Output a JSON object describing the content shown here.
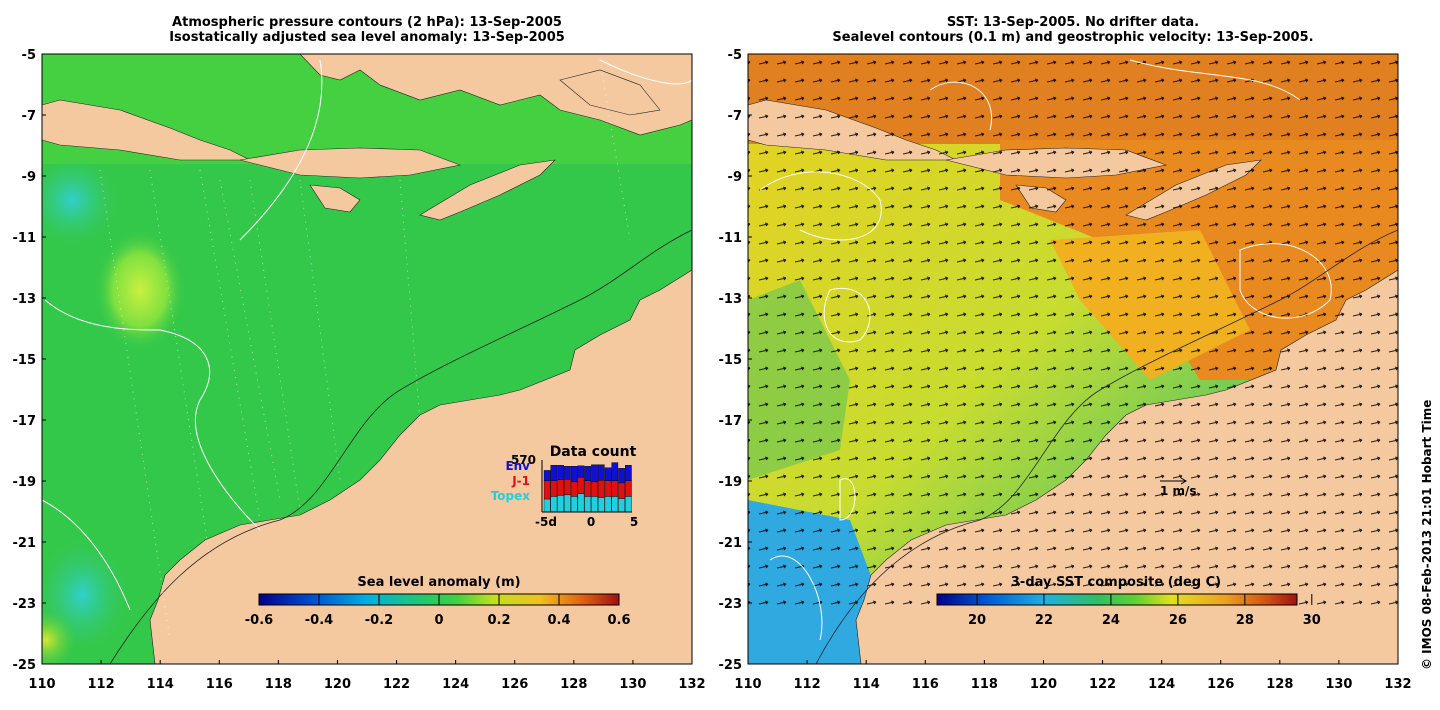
{
  "left_panel": {
    "title_line1": "Atmospheric pressure contours (2 hPa): 13-Sep-2005",
    "title_line2": "Isostatically adjusted sea level anomaly: 13-Sep-2005",
    "colorbar_label": "Sea level anomaly (m)",
    "colorbar_ticks": [
      "-0.6",
      "-0.4",
      "-0.2",
      "0",
      "0.2",
      "0.4",
      "0.6"
    ],
    "data_count": {
      "title": "Data count",
      "max_label": "570",
      "legend": [
        {
          "name": "Env",
          "color": "#1010d0"
        },
        {
          "name": "J-1",
          "color": "#e01010"
        },
        {
          "name": "Topex",
          "color": "#20d0e0"
        }
      ],
      "x_ticks": [
        "-5d",
        "0",
        "5"
      ],
      "bars": [
        {
          "env": 0.2,
          "j1": 0.35,
          "topex": 0.25
        },
        {
          "env": 0.3,
          "j1": 0.3,
          "topex": 0.3
        },
        {
          "env": 0.28,
          "j1": 0.3,
          "topex": 0.32
        },
        {
          "env": 0.25,
          "j1": 0.3,
          "topex": 0.33
        },
        {
          "env": 0.3,
          "j1": 0.28,
          "topex": 0.3
        },
        {
          "env": 0.22,
          "j1": 0.32,
          "topex": 0.35
        },
        {
          "env": 0.28,
          "j1": 0.3,
          "topex": 0.3
        },
        {
          "env": 0.33,
          "j1": 0.28,
          "topex": 0.3
        },
        {
          "env": 0.3,
          "j1": 0.33,
          "topex": 0.28
        },
        {
          "env": 0.25,
          "j1": 0.3,
          "topex": 0.3
        },
        {
          "env": 0.35,
          "j1": 0.3,
          "topex": 0.3
        },
        {
          "env": 0.28,
          "j1": 0.3,
          "topex": 0.26
        },
        {
          "env": 0.3,
          "j1": 0.3,
          "topex": 0.3
        }
      ]
    }
  },
  "right_panel": {
    "title_line1": "SST: 13-Sep-2005. No drifter data.",
    "title_line2": "Sealevel contours (0.1 m) and geostrophic velocity: 13-Sep-2005.",
    "colorbar_label": "3-day SST composite (deg C)",
    "colorbar_ticks": [
      "20",
      "22",
      "24",
      "26",
      "28",
      "30"
    ],
    "velocity_scale_label": "1 m/s"
  },
  "axes": {
    "lat_ticks": [
      "-5",
      "-7",
      "-9",
      "-11",
      "-13",
      "-15",
      "-17",
      "-19",
      "-21",
      "-23",
      "-25"
    ],
    "lon_ticks": [
      "110",
      "112",
      "114",
      "116",
      "118",
      "120",
      "122",
      "124",
      "126",
      "128",
      "130",
      "132"
    ]
  },
  "credit": "© IMOS 08-Feb-2013 21:01 Hobart Time",
  "colors": {
    "land": "#f5c9a0",
    "sea_base": "#2ec84a",
    "sst_warm": "#e08a20",
    "sst_cool": "#40b8e0"
  }
}
